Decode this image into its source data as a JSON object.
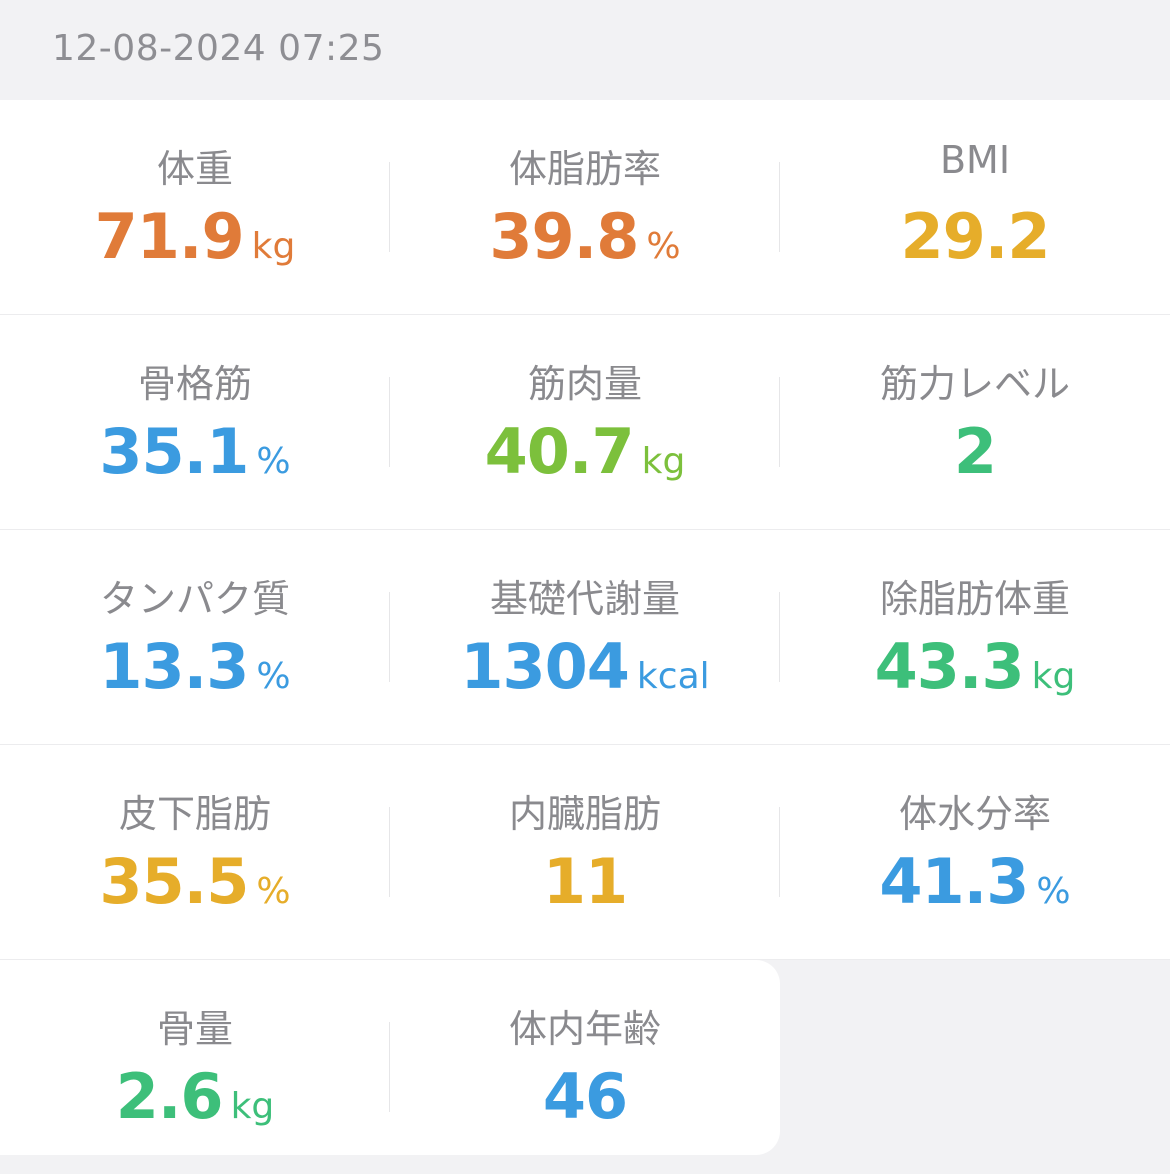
{
  "header": {
    "timestamp": "12-08-2024 07:25"
  },
  "colors": {
    "orange": "#e07b39",
    "amber": "#e6ad2a",
    "blue": "#3b9be0",
    "lime": "#7cc03c",
    "green": "#3dbf7a",
    "label": "#8a8a8e"
  },
  "metrics": [
    {
      "label": "体重",
      "value": "71.9",
      "unit": "kg",
      "color": "#e07b39"
    },
    {
      "label": "体脂肪率",
      "value": "39.8",
      "unit": "%",
      "color": "#e07b39"
    },
    {
      "label": "BMI",
      "value": "29.2",
      "unit": "",
      "color": "#e6ad2a"
    },
    {
      "label": "骨格筋",
      "value": "35.1",
      "unit": "%",
      "color": "#3b9be0"
    },
    {
      "label": "筋肉量",
      "value": "40.7",
      "unit": "kg",
      "color": "#7cc03c"
    },
    {
      "label": "筋力レベル",
      "value": "2",
      "unit": "",
      "color": "#3dbf7a"
    },
    {
      "label": "タンパク質",
      "value": "13.3",
      "unit": "%",
      "color": "#3b9be0"
    },
    {
      "label": "基礎代謝量",
      "value": "1304",
      "unit": "kcal",
      "color": "#3b9be0"
    },
    {
      "label": "除脂肪体重",
      "value": "43.3",
      "unit": "kg",
      "color": "#3dbf7a"
    },
    {
      "label": "皮下脂肪",
      "value": "35.5",
      "unit": "%",
      "color": "#e6ad2a"
    },
    {
      "label": "内臓脂肪",
      "value": "11",
      "unit": "",
      "color": "#e6ad2a"
    },
    {
      "label": "体水分率",
      "value": "41.3",
      "unit": "%",
      "color": "#3b9be0"
    },
    {
      "label": "骨量",
      "value": "2.6",
      "unit": "kg",
      "color": "#3dbf7a"
    },
    {
      "label": "体内年齢",
      "value": "46",
      "unit": "",
      "color": "#3b9be0"
    }
  ]
}
